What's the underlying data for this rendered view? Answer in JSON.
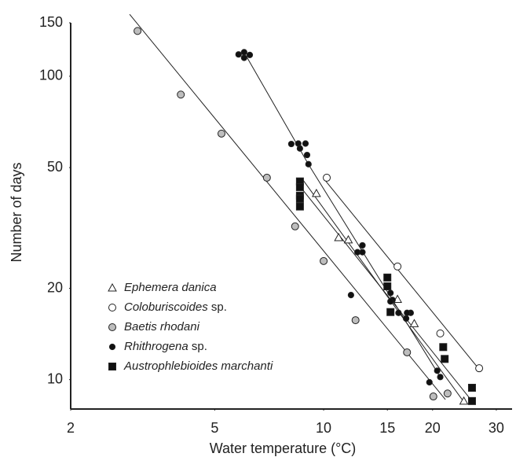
{
  "chart_data": {
    "type": "scatter",
    "x_label": "Water temperature (°C)",
    "y_label": "Number of days",
    "xscale": "log",
    "yscale": "log",
    "xlim": [
      2,
      33
    ],
    "ylim": [
      8,
      150
    ],
    "xticks": [
      2,
      5,
      10,
      15,
      20,
      30
    ],
    "yticks": [
      10,
      20,
      50,
      100,
      150
    ],
    "grid": false,
    "legend": "lower left",
    "series": [
      {
        "name": "Ephemera danica",
        "marker": "triangle",
        "color": "#ffffff",
        "x": [
          9.55,
          11.0,
          11.7,
          16.0,
          17.8,
          24.4
        ],
        "values": [
          41.1,
          29.4,
          28.9,
          18.4,
          15.3,
          8.5
        ],
        "fit": {
          "x": [
            8.77,
            24.3
          ],
          "values": [
            45.5,
            8.5
          ]
        }
      },
      {
        "name": "Coloburiscoides sp.",
        "marker": "circle",
        "color": "#ffffff",
        "x": [
          10.2,
          16.0,
          21.0,
          26.9
        ],
        "values": [
          46.3,
          23.6,
          14.2,
          10.9
        ],
        "fit": {
          "x": [
            10.0,
            27.1
          ],
          "values": [
            46,
            10.7
          ]
        }
      },
      {
        "name": "Baetis rhodani",
        "marker": "circle",
        "color": "#bdbdbd",
        "x": [
          3.06,
          4.03,
          5.22,
          6.97,
          8.34,
          10.0,
          12.25,
          17.0,
          20.1,
          22.0
        ],
        "values": [
          141,
          87,
          64.7,
          46.3,
          32,
          24.6,
          15.7,
          12.3,
          8.8,
          9.0
        ],
        "fit": {
          "x": [
            2.91,
            21.7
          ],
          "values": [
            160,
            8.6
          ]
        }
      },
      {
        "name": "Rhithrogena sp.",
        "marker": "dot",
        "color": "#111111",
        "x": [
          5.82,
          6.03,
          6.25,
          6.03,
          8.14,
          8.51,
          8.91,
          8.6,
          9.0,
          9.08,
          12.8,
          12.4,
          12.8,
          11.9,
          15.3,
          15.5,
          15.3,
          16.1,
          16.9,
          17.4,
          17.0,
          20.6,
          21.0,
          19.6
        ],
        "values": [
          118,
          120,
          117.5,
          115,
          59.8,
          60,
          60,
          57.8,
          55,
          51.3,
          27.7,
          26.3,
          26.3,
          19,
          19.3,
          18.3,
          18.1,
          16.6,
          15.9,
          16.6,
          16.6,
          10.7,
          10.2,
          9.8
        ],
        "fit": {
          "x": [
            6.1,
            9.1,
            21.0
          ],
          "values": [
            117,
            51,
            10.2
          ]
        }
      },
      {
        "name": "Austrophlebioides marchanti",
        "marker": "square",
        "color": "#111111",
        "x": [
          8.6,
          8.6,
          8.6,
          8.6,
          8.6,
          15.0,
          15.0,
          15.3,
          21.4,
          21.6,
          25.7,
          25.7
        ],
        "values": [
          45,
          43.1,
          40.4,
          39.5,
          37.2,
          21.7,
          20.3,
          16.7,
          12.8,
          11.7,
          9.4,
          8.5
        ],
        "fit": {
          "x": [
            8.73,
            25.5
          ],
          "values": [
            42.4,
            8.6
          ]
        }
      }
    ]
  }
}
